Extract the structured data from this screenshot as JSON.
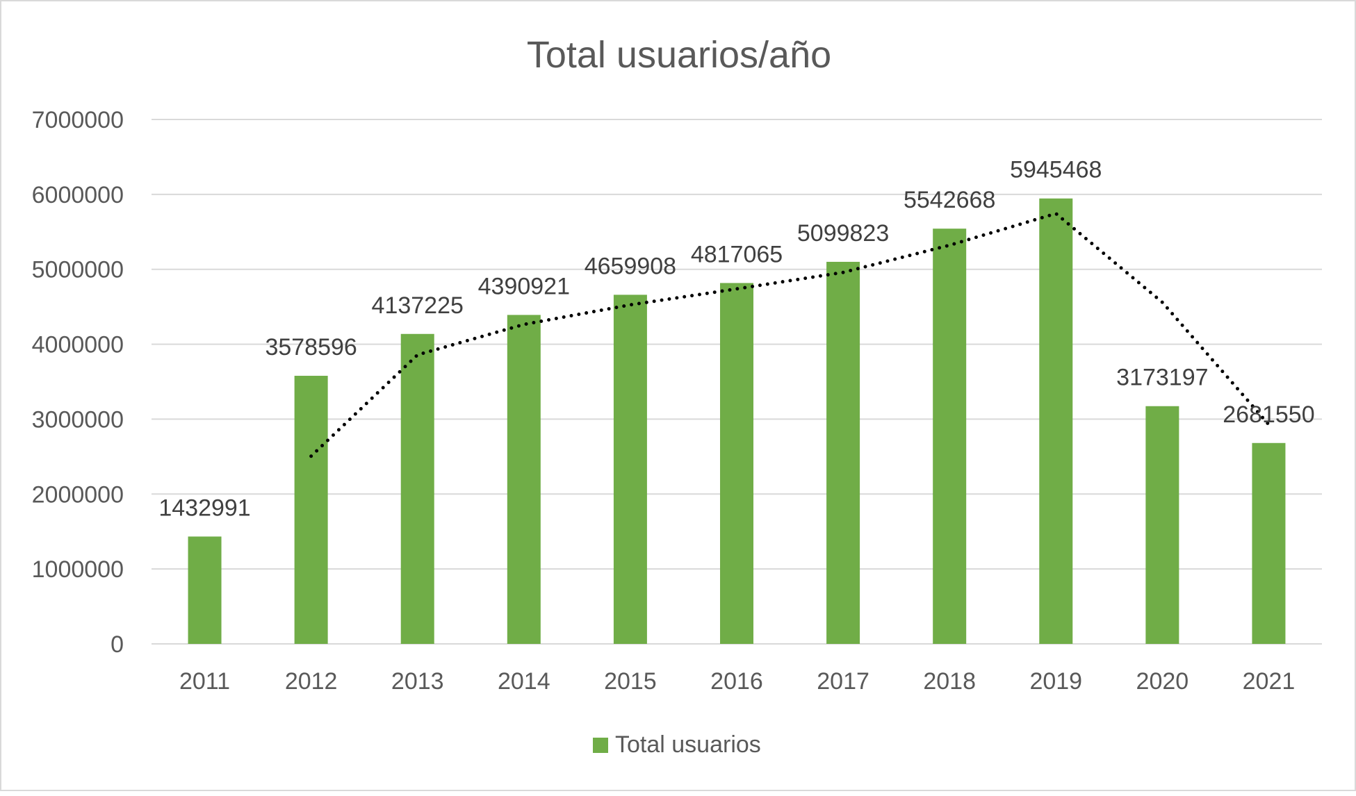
{
  "chart_data": {
    "type": "bar",
    "title": "Total usuarios/año",
    "xlabel": "",
    "ylabel": "",
    "categories": [
      "2011",
      "2012",
      "2013",
      "2014",
      "2015",
      "2016",
      "2017",
      "2018",
      "2019",
      "2020",
      "2021"
    ],
    "series": [
      {
        "name": "Total usuarios",
        "values": [
          1432991,
          3578596,
          4137225,
          4390921,
          4659908,
          4817065,
          5099823,
          5542668,
          5945468,
          3173197,
          2681550
        ],
        "color": "#70ad47"
      }
    ],
    "trendline": {
      "type": "moving-average",
      "style": "dotted",
      "color": "#000000",
      "values": [
        null,
        2505794,
        3857911,
        4264073,
        4525415,
        4738487,
        4958444,
        5321246,
        5744068,
        4559333,
        2927374
      ]
    },
    "ylim": [
      0,
      7000000
    ],
    "yticks": [
      "0",
      "1000000",
      "2000000",
      "3000000",
      "4000000",
      "5000000",
      "6000000",
      "7000000"
    ],
    "grid": true,
    "data_labels": true,
    "legend": "bottom",
    "colors": {
      "bar": "#70ad47",
      "grid": "#d9d9d9",
      "text": "#595959",
      "label": "#404040",
      "title": "#595959"
    }
  }
}
